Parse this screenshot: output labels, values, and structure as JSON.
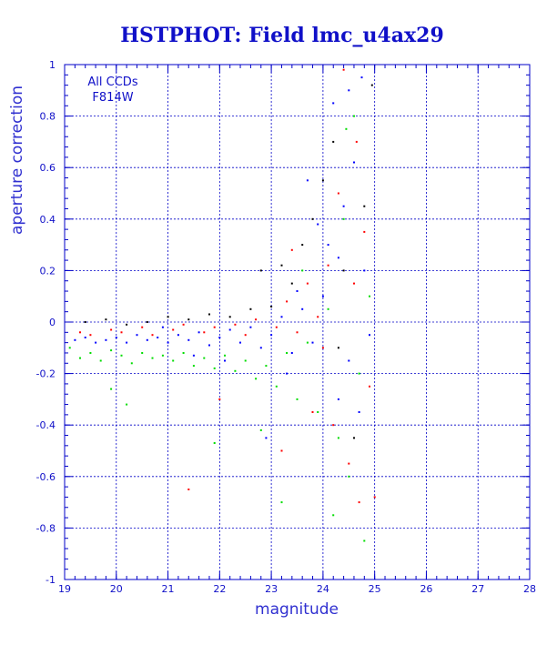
{
  "colors": {
    "axis": "#0000c8",
    "text": "#1010c8",
    "grid": "#0000c8",
    "background": "#ffffff",
    "series_blue": "#0000ff",
    "series_red": "#ff0000",
    "series_green": "#00dd00",
    "series_black": "#000000"
  },
  "chart_data": {
    "type": "scatter",
    "title": "HSTPHOT: Field lmc_u4ax29",
    "xlabel": "magnitude",
    "ylabel": "aperture correction",
    "xlim": [
      19,
      28
    ],
    "ylim": [
      -1,
      1
    ],
    "xticks": [
      "19",
      "20",
      "21",
      "22",
      "23",
      "24",
      "25",
      "26",
      "27",
      "28"
    ],
    "yticks": [
      "-1",
      "-0.8",
      "-0.6",
      "-0.4",
      "-0.2",
      "0",
      "0.2",
      "0.4",
      "0.6",
      "0.8",
      "1"
    ],
    "grid": true,
    "annotations": [
      "All CCDs",
      "F814W"
    ],
    "series_colors": [
      "#0000ff",
      "#ff0000",
      "#00dd00",
      "#000000"
    ],
    "series": [
      {
        "color": "#0000ff",
        "points": [
          [
            19.2,
            -0.07
          ],
          [
            19.4,
            -0.06
          ],
          [
            19.6,
            -0.08
          ],
          [
            19.8,
            -0.07
          ],
          [
            20.0,
            -0.06
          ],
          [
            20.2,
            -0.08
          ],
          [
            20.4,
            -0.05
          ],
          [
            20.6,
            -0.07
          ],
          [
            20.8,
            -0.06
          ],
          [
            21.0,
            -0.08
          ],
          [
            21.2,
            -0.05
          ],
          [
            21.4,
            -0.07
          ],
          [
            21.6,
            -0.04
          ],
          [
            21.8,
            -0.09
          ],
          [
            22.0,
            -0.06
          ],
          [
            22.2,
            -0.03
          ],
          [
            22.4,
            -0.08
          ],
          [
            22.6,
            -0.02
          ],
          [
            22.8,
            -0.1
          ],
          [
            23.0,
            -0.05
          ],
          [
            23.2,
            0.02
          ],
          [
            23.4,
            -0.12
          ],
          [
            23.6,
            0.05
          ],
          [
            23.8,
            -0.08
          ],
          [
            24.0,
            0.1
          ],
          [
            24.1,
            0.3
          ],
          [
            24.2,
            0.85
          ],
          [
            24.3,
            -0.3
          ],
          [
            24.4,
            0.45
          ],
          [
            24.5,
            -0.15
          ],
          [
            24.6,
            0.62
          ],
          [
            24.7,
            -0.35
          ],
          [
            24.8,
            0.2
          ],
          [
            24.9,
            -0.05
          ],
          [
            23.9,
            0.38
          ],
          [
            23.7,
            0.55
          ],
          [
            24.5,
            0.9
          ],
          [
            24.3,
            0.25
          ],
          [
            22.9,
            -0.45
          ],
          [
            23.3,
            -0.2
          ],
          [
            21.5,
            -0.13
          ],
          [
            20.9,
            -0.02
          ],
          [
            22.1,
            -0.15
          ],
          [
            23.5,
            0.12
          ],
          [
            24.75,
            0.95
          ]
        ]
      },
      {
        "color": "#ff0000",
        "points": [
          [
            19.3,
            -0.04
          ],
          [
            19.5,
            -0.05
          ],
          [
            19.9,
            -0.03
          ],
          [
            20.1,
            -0.04
          ],
          [
            20.5,
            -0.02
          ],
          [
            20.7,
            -0.05
          ],
          [
            21.1,
            -0.03
          ],
          [
            21.3,
            -0.01
          ],
          [
            21.7,
            -0.04
          ],
          [
            21.9,
            -0.02
          ],
          [
            22.3,
            -0.01
          ],
          [
            22.5,
            -0.05
          ],
          [
            22.7,
            0.01
          ],
          [
            23.1,
            -0.02
          ],
          [
            23.3,
            0.08
          ],
          [
            23.5,
            -0.04
          ],
          [
            23.7,
            0.15
          ],
          [
            23.9,
            0.02
          ],
          [
            24.1,
            0.22
          ],
          [
            24.2,
            -0.4
          ],
          [
            24.3,
            0.5
          ],
          [
            24.4,
            0.98
          ],
          [
            24.5,
            -0.55
          ],
          [
            24.6,
            0.15
          ],
          [
            24.7,
            -0.7
          ],
          [
            24.8,
            0.35
          ],
          [
            24.9,
            -0.25
          ],
          [
            25.0,
            -0.68
          ],
          [
            23.8,
            -0.35
          ],
          [
            23.4,
            0.28
          ],
          [
            24.0,
            -0.1
          ],
          [
            22.0,
            -0.3
          ],
          [
            21.4,
            -0.65
          ],
          [
            23.2,
            -0.5
          ],
          [
            24.65,
            0.7
          ]
        ]
      },
      {
        "color": "#00dd00",
        "points": [
          [
            19.1,
            -0.1
          ],
          [
            19.3,
            -0.14
          ],
          [
            19.5,
            -0.12
          ],
          [
            19.7,
            -0.15
          ],
          [
            19.9,
            -0.11
          ],
          [
            20.1,
            -0.13
          ],
          [
            20.3,
            -0.16
          ],
          [
            20.5,
            -0.12
          ],
          [
            20.7,
            -0.14
          ],
          [
            20.9,
            -0.13
          ],
          [
            21.1,
            -0.15
          ],
          [
            21.3,
            -0.12
          ],
          [
            21.5,
            -0.17
          ],
          [
            21.7,
            -0.14
          ],
          [
            21.9,
            -0.18
          ],
          [
            22.1,
            -0.13
          ],
          [
            22.3,
            -0.19
          ],
          [
            22.5,
            -0.15
          ],
          [
            22.7,
            -0.22
          ],
          [
            22.9,
            -0.17
          ],
          [
            23.1,
            -0.25
          ],
          [
            23.3,
            -0.12
          ],
          [
            23.5,
            -0.3
          ],
          [
            23.7,
            -0.08
          ],
          [
            23.9,
            -0.35
          ],
          [
            24.1,
            0.05
          ],
          [
            24.3,
            -0.45
          ],
          [
            24.4,
            0.4
          ],
          [
            24.5,
            -0.6
          ],
          [
            24.6,
            0.8
          ],
          [
            24.7,
            -0.2
          ],
          [
            24.8,
            -0.85
          ],
          [
            24.9,
            0.1
          ],
          [
            23.2,
            -0.7
          ],
          [
            22.8,
            -0.42
          ],
          [
            24.2,
            -0.75
          ],
          [
            20.2,
            -0.32
          ],
          [
            21.9,
            -0.47
          ],
          [
            24.45,
            0.75
          ],
          [
            23.6,
            0.2
          ],
          [
            19.9,
            -0.26
          ]
        ]
      },
      {
        "color": "#000000",
        "points": [
          [
            19.4,
            0.0
          ],
          [
            19.8,
            0.01
          ],
          [
            20.2,
            -0.01
          ],
          [
            20.6,
            0.0
          ],
          [
            21.0,
            0.02
          ],
          [
            21.4,
            0.01
          ],
          [
            21.8,
            0.03
          ],
          [
            22.2,
            0.02
          ],
          [
            22.6,
            0.05
          ],
          [
            23.0,
            0.06
          ],
          [
            23.4,
            0.15
          ],
          [
            23.6,
            0.3
          ],
          [
            23.8,
            0.4
          ],
          [
            24.0,
            0.55
          ],
          [
            24.2,
            0.7
          ],
          [
            24.4,
            0.2
          ],
          [
            24.6,
            -0.45
          ],
          [
            24.8,
            0.45
          ],
          [
            24.95,
            0.92
          ],
          [
            24.3,
            -0.1
          ],
          [
            22.8,
            0.2
          ],
          [
            23.2,
            0.22
          ]
        ]
      }
    ]
  }
}
